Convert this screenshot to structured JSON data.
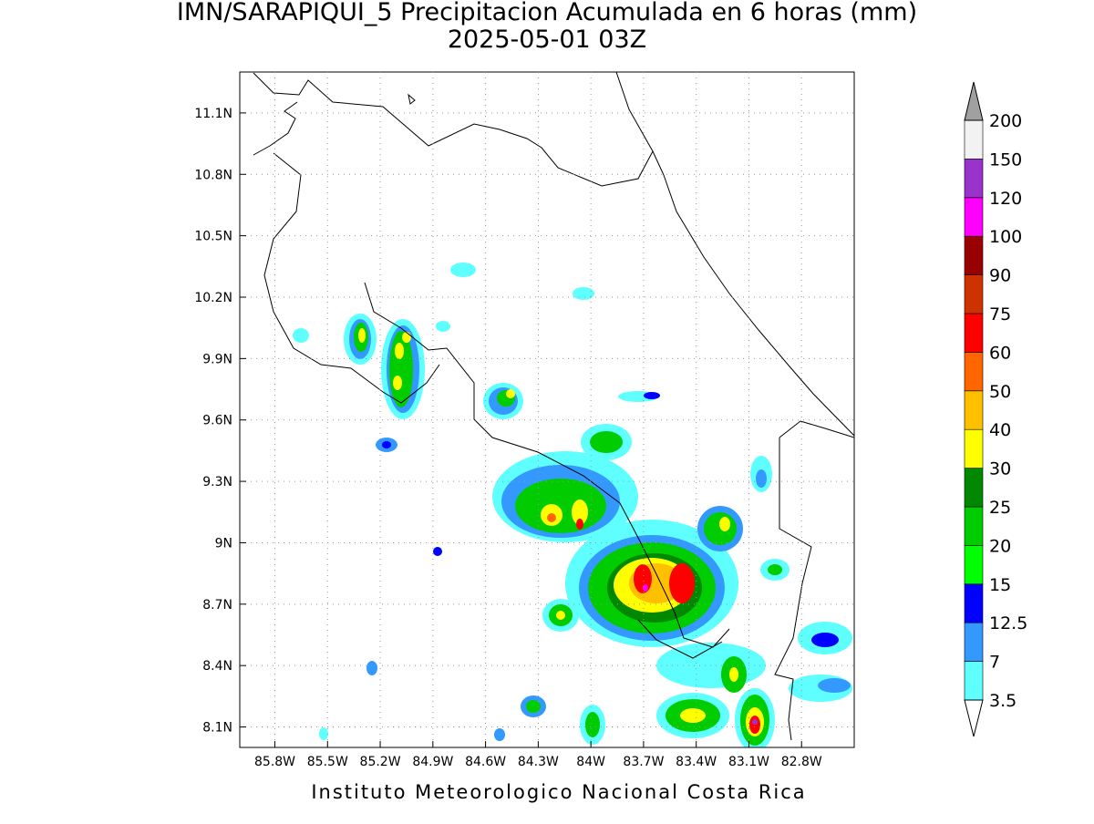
{
  "map": {
    "title": "IMN/SARAPIQUI_5 Precipitacion Acumulada en 6 horas (mm)",
    "subtitle": "2025-05-01 03Z",
    "footer": "Instituto Meteorologico Nacional Costa Rica",
    "xlim": [
      -86.0,
      -82.5
    ],
    "ylim": [
      8.0,
      11.3
    ],
    "grid": true,
    "xticks": [
      {
        "value": -85.8,
        "label": "85.8W"
      },
      {
        "value": -85.5,
        "label": "85.5W"
      },
      {
        "value": -85.2,
        "label": "85.2W"
      },
      {
        "value": -84.9,
        "label": "84.9W"
      },
      {
        "value": -84.6,
        "label": "84.6W"
      },
      {
        "value": -84.3,
        "label": "84.3W"
      },
      {
        "value": -84.0,
        "label": "84W"
      },
      {
        "value": -83.7,
        "label": "83.7W"
      },
      {
        "value": -83.4,
        "label": "83.4W"
      },
      {
        "value": -83.1,
        "label": "83.1W"
      },
      {
        "value": -82.8,
        "label": "82.8W"
      }
    ],
    "yticks": [
      {
        "value": 8.1,
        "label": "8.1N"
      },
      {
        "value": 8.4,
        "label": "8.4N"
      },
      {
        "value": 8.7,
        "label": "8.7N"
      },
      {
        "value": 9.0,
        "label": "9N"
      },
      {
        "value": 9.3,
        "label": "9.3N"
      },
      {
        "value": 9.6,
        "label": "9.6N"
      },
      {
        "value": 9.9,
        "label": "9.9N"
      },
      {
        "value": 10.2,
        "label": "10.2N"
      },
      {
        "value": 10.5,
        "label": "10.5N"
      },
      {
        "value": 10.8,
        "label": "10.8N"
      },
      {
        "value": 11.1,
        "label": "11.1N"
      }
    ],
    "colorbar": {
      "levels": [
        3.5,
        7,
        12.5,
        15,
        20,
        25,
        30,
        40,
        50,
        60,
        75,
        90,
        100,
        120,
        150,
        200
      ],
      "colors": [
        "#5fffff",
        "#3399ff",
        "#0000ff",
        "#00ff00",
        "#00cc00",
        "#008800",
        "#ffff00",
        "#ffc000",
        "#ff6600",
        "#ff0000",
        "#cc3300",
        "#990000",
        "#ff00ff",
        "#9933cc",
        "#f2f2f2"
      ],
      "under_color": "#ffffff",
      "over_color": "#a0a0a0"
    }
  }
}
